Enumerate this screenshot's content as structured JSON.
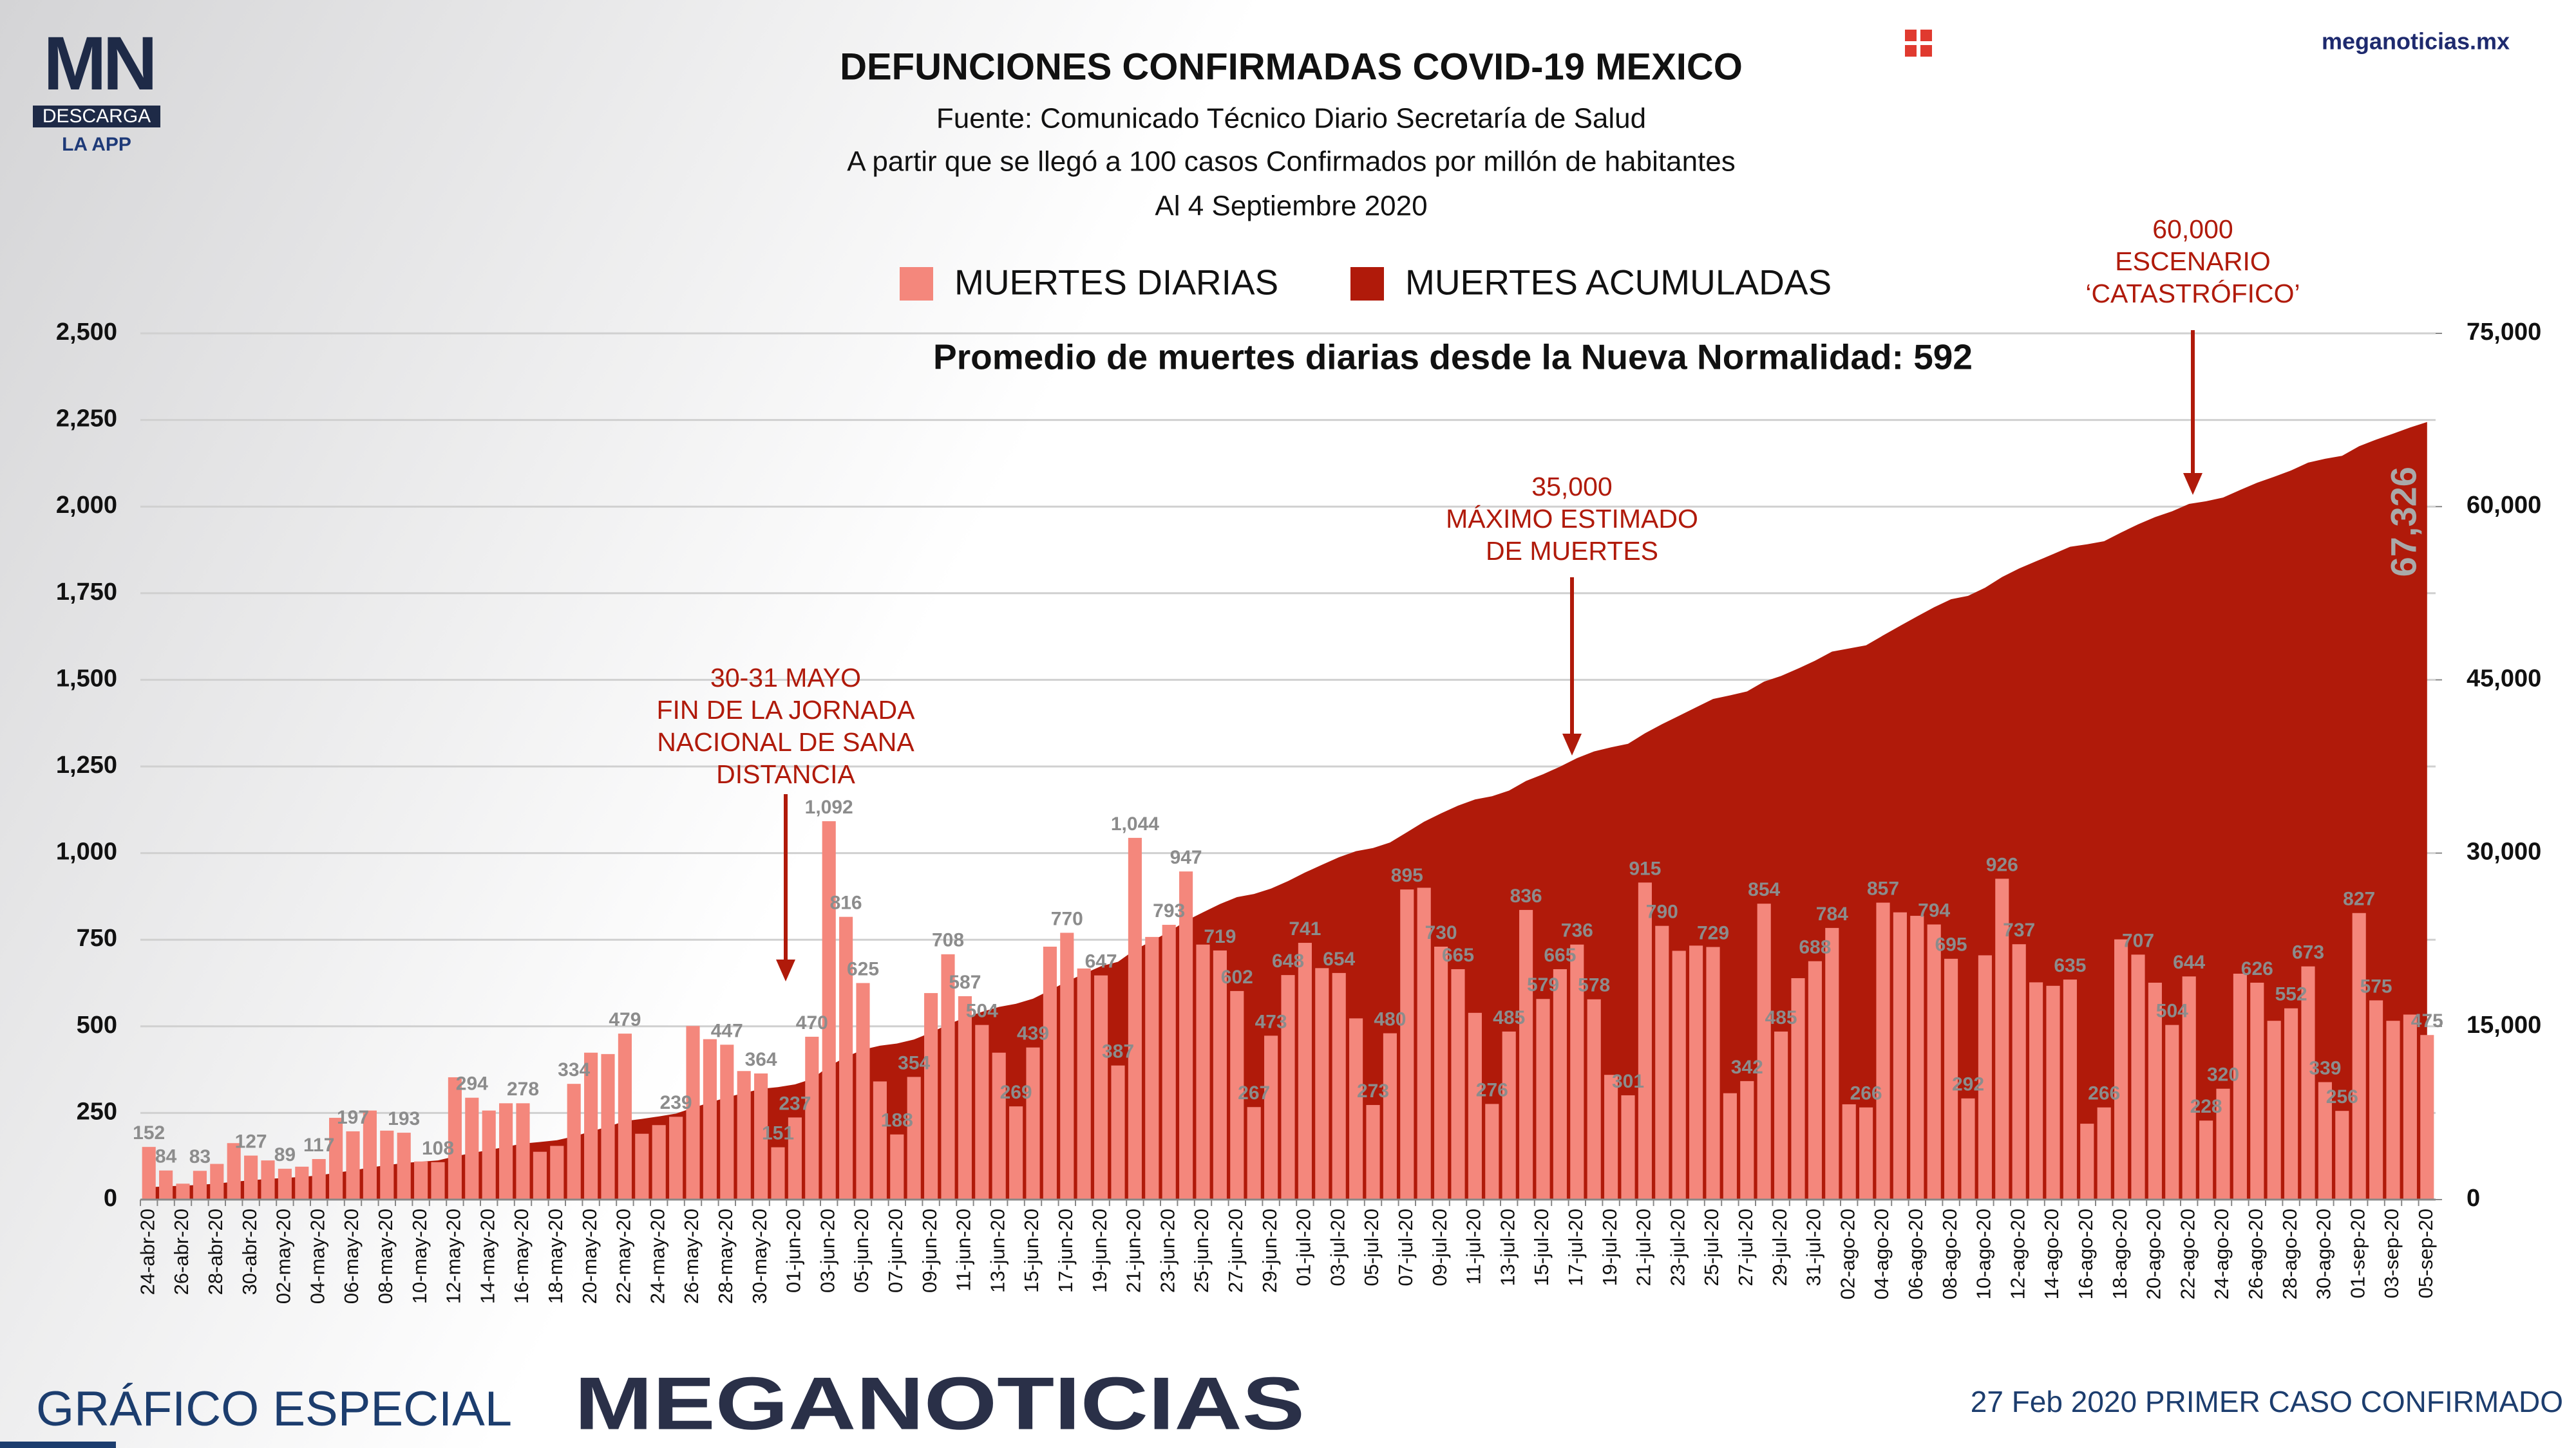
{
  "logo": {
    "mark": "MN",
    "button": "DESCARGA",
    "sub": "LA APP"
  },
  "site": "meganoticias.mx",
  "footer": {
    "left": "GRÁFICO ESPECIAL",
    "brand": "MEGANOTICIAS",
    "right": "27 Feb 2020 PRIMER CASO CONFIRMADO"
  },
  "chart_data": {
    "type": "combo",
    "title": "DEFUNCIONES CONFIRMADAS COVID-19 MEXICO",
    "subtitle": [
      "Fuente: Comunicado Técnico Diario Secretaría de Salud",
      "A partir que se llegó a 100 casos Confirmados por millón de habitantes",
      "Al 4 Septiembre 2020"
    ],
    "note": "Promedio de muertes diarias desde la Nueva Normalidad:  592",
    "annotations": [
      {
        "lines": [
          "30-31 MAYO",
          "FIN DE LA JORNADA",
          "NACIONAL DE SANA",
          "DISTANCIA"
        ]
      },
      {
        "lines": [
          "35,000",
          "MÁXIMO ESTIMADO",
          "DE MUERTES"
        ]
      },
      {
        "lines": [
          "60,000",
          "ESCENARIO",
          "‘CATASTRÓFICO’"
        ]
      }
    ],
    "categories": [
      "24-abr-20",
      null,
      "26-abr-20",
      null,
      "28-abr-20",
      null,
      "30-abr-20",
      null,
      "02-may-20",
      null,
      "04-may-20",
      null,
      "06-may-20",
      null,
      "08-may-20",
      null,
      "10-may-20",
      null,
      "12-may-20",
      null,
      "14-may-20",
      null,
      "16-may-20",
      null,
      "18-may-20",
      null,
      "20-may-20",
      null,
      "22-may-20",
      null,
      "24-may-20",
      null,
      "26-may-20",
      null,
      "28-may-20",
      null,
      "30-may-20",
      null,
      "01-jun-20",
      null,
      "03-jun-20",
      null,
      "05-jun-20",
      null,
      "07-jun-20",
      null,
      "09-jun-20",
      null,
      "11-jun-20",
      null,
      "13-jun-20",
      null,
      "15-jun-20",
      null,
      "17-jun-20",
      null,
      "19-jun-20",
      null,
      "21-jun-20",
      null,
      "23-jun-20",
      null,
      "25-jun-20",
      null,
      "27-jun-20",
      null,
      "29-jun-20",
      null,
      "01-jul-20",
      null,
      "03-jul-20",
      null,
      "05-jul-20",
      null,
      "07-jul-20",
      null,
      "09-jul-20",
      null,
      "11-jul-20",
      null,
      "13-jul-20",
      null,
      "15-jul-20",
      null,
      "17-jul-20",
      null,
      "19-jul-20",
      null,
      "21-jul-20",
      null,
      "23-jul-20",
      null,
      "25-jul-20",
      null,
      "27-jul-20",
      null,
      "29-jul-20",
      null,
      "31-jul-20",
      null,
      "02-ago-20",
      null,
      "04-ago-20",
      null,
      "06-ago-20",
      null,
      "08-ago-20",
      null,
      "10-ago-20",
      null,
      "12-ago-20",
      null,
      "14-ago-20",
      null,
      "16-ago-20",
      null,
      "18-ago-20",
      null,
      "20-ago-20",
      null,
      "22-ago-20",
      null,
      "24-ago-20",
      null,
      "26-ago-20",
      null,
      "28-ago-20",
      null,
      "30-ago-20",
      null,
      "01-sep-20",
      null,
      "03-sep-20",
      null,
      "05-sep-20"
    ],
    "series": [
      {
        "name": "MUERTES DIARIAS",
        "type": "bar",
        "color": "#f4877c",
        "axis": "y",
        "values": [
          152,
          84,
          46,
          83,
          103,
          163,
          127,
          113,
          89,
          95,
          117,
          236,
          197,
          257,
          199,
          193,
          110,
          108,
          353,
          294,
          257,
          278,
          278,
          138,
          155,
          334,
          424,
          420,
          479,
          190,
          215,
          239,
          501,
          463,
          447,
          371,
          364,
          151,
          237,
          470,
          1092,
          816,
          625,
          341,
          188,
          354,
          596,
          708,
          587,
          504,
          424,
          269,
          439,
          730,
          770,
          667,
          647,
          387,
          1044,
          758,
          793,
          947,
          736,
          719,
          602,
          267,
          473,
          648,
          741,
          668,
          654,
          523,
          273,
          480,
          895,
          900,
          730,
          665,
          539,
          276,
          485,
          836,
          579,
          665,
          736,
          578,
          360,
          301,
          915,
          790,
          718,
          733,
          729,
          307,
          342,
          854,
          485,
          639,
          688,
          784,
          275,
          266,
          857,
          829,
          819,
          794,
          695,
          292,
          705,
          926,
          737,
          627,
          617,
          635,
          219,
          266,
          751,
          707,
          626,
          504,
          644,
          228,
          320,
          652,
          626,
          516,
          552,
          673,
          339,
          256,
          827,
          575,
          516,
          534,
          475
        ],
        "value_labels": [
          "152",
          "84",
          null,
          "83",
          null,
          null,
          "127",
          null,
          "89",
          null,
          "117",
          null,
          "197",
          null,
          null,
          "193",
          null,
          "108",
          null,
          "294",
          null,
          null,
          "278",
          null,
          null,
          "334",
          null,
          null,
          "479",
          null,
          null,
          "239",
          null,
          null,
          "447",
          null,
          "364",
          "151",
          "237",
          "470",
          "1,092",
          "816",
          "625",
          null,
          "188",
          "354",
          null,
          "708",
          "587",
          "504",
          null,
          "269",
          "439",
          null,
          "770",
          null,
          "647",
          "387",
          "1,044",
          null,
          "793",
          "947",
          null,
          "719",
          "602",
          "267",
          "473",
          "648",
          "741",
          null,
          "654",
          null,
          "273",
          "480",
          "895",
          null,
          "730",
          "665",
          null,
          "276",
          "485",
          "836",
          "579",
          "665",
          "736",
          "578",
          null,
          "301",
          "915",
          "790",
          null,
          null,
          "729",
          null,
          "342",
          "854",
          "485",
          null,
          "688",
          "784",
          null,
          "266",
          "857",
          null,
          null,
          "794",
          "695",
          "292",
          null,
          "926",
          "737",
          null,
          null,
          "635",
          null,
          "266",
          null,
          "707",
          null,
          "504",
          "644",
          "228",
          "320",
          null,
          "626",
          null,
          "552",
          "673",
          "339",
          "256",
          "827",
          "575",
          null,
          null,
          "475"
        ]
      },
      {
        "name": "MUERTES ACUMULADAS",
        "type": "area",
        "color": "#b01a0a",
        "axis": "y2",
        "values": [
          1069,
          1153,
          1199,
          1282,
          1385,
          1548,
          1675,
          1788,
          1877,
          1972,
          2089,
          2325,
          2522,
          2779,
          2978,
          3171,
          3281,
          3389,
          3742,
          4036,
          4293,
          4571,
          4849,
          4987,
          5142,
          5476,
          5900,
          6320,
          6799,
          6989,
          7204,
          7443,
          7944,
          8407,
          8854,
          9225,
          9589,
          9740,
          9977,
          10447,
          11539,
          12355,
          12980,
          13321,
          13509,
          13863,
          14459,
          15167,
          15754,
          16258,
          16682,
          16951,
          17390,
          18120,
          18890,
          19557,
          20204,
          20591,
          21635,
          22393,
          23186,
          24133,
          24869,
          25588,
          26190,
          26457,
          26930,
          27578,
          28319,
          28987,
          29641,
          30164,
          30437,
          30917,
          31812,
          32712,
          33442,
          34107,
          34646,
          34922,
          35407,
          36243,
          36822,
          37487,
          38223,
          38801,
          39161,
          39462,
          40377,
          41167,
          41885,
          42618,
          43347,
          43654,
          43996,
          44850,
          45335,
          45974,
          46662,
          47446,
          47721,
          47987,
          48844,
          49673,
          50492,
          51286,
          51981,
          52273,
          52978,
          53904,
          54641,
          55268,
          55885,
          56520,
          56739,
          57005,
          57756,
          58463,
          59089,
          59593,
          60237,
          60465,
          60785,
          61437,
          62063,
          62579,
          63131,
          63804,
          64143,
          64399,
          65226,
          65801,
          66317,
          66851,
          67326
        ],
        "value_labels": [
          null,
          null,
          null,
          null,
          null,
          null,
          null,
          null,
          null,
          null,
          null,
          null,
          null,
          null,
          null,
          null,
          null,
          null,
          null,
          null,
          null,
          null,
          null,
          null,
          null,
          null,
          null,
          null,
          null,
          null,
          null,
          null,
          null,
          null,
          null,
          null,
          null,
          null,
          null,
          null,
          null,
          null,
          null,
          null,
          null,
          null,
          null,
          null,
          null,
          null,
          null,
          null,
          null,
          null,
          null,
          null,
          null,
          null,
          null,
          null,
          null,
          null,
          null,
          null,
          null,
          null,
          null,
          null,
          null,
          null,
          null,
          null,
          null,
          null,
          null,
          null,
          null,
          null,
          null,
          null,
          null,
          null,
          null,
          null,
          null,
          null,
          null,
          null,
          null,
          null,
          null,
          null,
          null,
          null,
          null,
          null,
          null,
          null,
          null,
          null,
          null,
          null,
          null,
          null,
          null,
          null,
          null,
          null,
          null,
          null,
          null,
          null,
          null,
          null,
          null,
          null,
          null,
          null,
          null,
          null,
          null,
          null,
          null,
          null,
          null,
          null,
          null,
          null,
          null,
          null,
          null,
          null,
          null,
          null,
          "67,326"
        ]
      }
    ],
    "ylim": [
      0,
      2500
    ],
    "yticks": [
      0,
      250,
      500,
      750,
      {
        "value": 1000,
        "label": "1,000"
      },
      {
        "value": 1250,
        "label": "1,250"
      },
      {
        "value": 1500,
        "label": "1,500"
      },
      {
        "value": 1750,
        "label": "1,750"
      },
      {
        "value": 2000,
        "label": "2,000"
      },
      {
        "value": 2250,
        "label": "2,250"
      },
      {
        "value": 2500,
        "label": "2,500"
      }
    ],
    "y2lim": [
      0,
      75000
    ],
    "y2ticks": [
      0,
      {
        "value": 15000,
        "label": "15,000"
      },
      {
        "value": 30000,
        "label": "30,000"
      },
      {
        "value": 45000,
        "label": "45,000"
      },
      {
        "value": 60000,
        "label": "60,000"
      },
      {
        "value": 75000,
        "label": "75,000"
      }
    ],
    "grid": true,
    "legend": "top"
  }
}
